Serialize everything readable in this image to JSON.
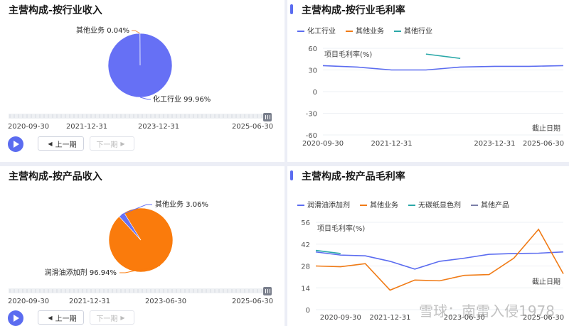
{
  "panels": {
    "industry_revenue": {
      "title": "主营构成-按行业收入",
      "prev": "上一期",
      "next": "下一期"
    },
    "industry_margin": {
      "title": "主营构成-按行业毛利率"
    },
    "product_revenue": {
      "title": "主营构成-按产品收入",
      "prev": "上一期",
      "next": "下一期"
    },
    "product_margin": {
      "title": "主营构成-按产品毛利率"
    }
  },
  "watermark": "雪球：南雷入侵1978",
  "chart_data": [
    {
      "type": "pie",
      "title": "主营构成-按行业收入",
      "slices": [
        {
          "label": "化工行业",
          "value": 99.96,
          "display": "化工行业 99.96%",
          "color": "#6670f5"
        },
        {
          "label": "其他业务",
          "value": 0.04,
          "display": "其他业务 0.04%",
          "color": "#f08a3c"
        }
      ],
      "timeline": [
        "2020-09-30",
        "2021-12-31",
        "2023-12-31",
        "2025-06-30"
      ]
    },
    {
      "type": "line",
      "title": "主营构成-按行业毛利率",
      "ylabel": "项目毛利率(%)",
      "xlabel": "截止日期",
      "x_ticks": [
        "2020-09-30",
        "2021-12-31",
        "2023-12-31",
        "2025-06-30"
      ],
      "x": [
        "2020-09-30",
        "2021-06-30",
        "2021-12-31",
        "2022-06-30",
        "2022-12-31",
        "2023-12-31",
        "2024-06-30",
        "2025-06-30"
      ],
      "ylim": [
        -60,
        60
      ],
      "yticks": [
        "60",
        "30",
        "0",
        "-30",
        "-60"
      ],
      "series": [
        {
          "name": "化工行业",
          "color": "#5b6cf0",
          "values": [
            36,
            34,
            30,
            30,
            34,
            35,
            35,
            36
          ]
        },
        {
          "name": "其他业务",
          "color": "#f07b16",
          "values": [
            null,
            null,
            null,
            null,
            null,
            null,
            null,
            null
          ]
        },
        {
          "name": "其他行业",
          "color": "#2aa8a8",
          "values": [
            null,
            null,
            null,
            52,
            46,
            null,
            null,
            null
          ]
        }
      ]
    },
    {
      "type": "pie",
      "title": "主营构成-按产品收入",
      "slices": [
        {
          "label": "润滑油添加剂",
          "value": 96.94,
          "display": "润滑油添加剂 96.94%",
          "color": "#fa7b0c"
        },
        {
          "label": "其他业务",
          "value": 3.06,
          "display": "其他业务 3.06%",
          "color": "#6670f5"
        }
      ],
      "timeline": [
        "2020-09-30",
        "2021-12-31",
        "2023-06-30",
        "2025-06-30"
      ]
    },
    {
      "type": "line",
      "title": "主营构成-按产品毛利率",
      "ylabel": "项目毛利率(%)",
      "xlabel": "截止日期",
      "x_ticks": [
        "2020-09-30",
        "2021-12-31",
        "2023-06-30",
        "2025-06-30"
      ],
      "x": [
        "2020-03-31",
        "2020-09-30",
        "2021-06-30",
        "2021-12-31",
        "2022-06-30",
        "2022-12-31",
        "2023-06-30",
        "2023-12-31",
        "2024-06-30",
        "2024-12-31",
        "2025-06-30"
      ],
      "ylim": [
        0,
        56
      ],
      "yticks": [
        "56",
        "42",
        "28",
        "14",
        "0"
      ],
      "series": [
        {
          "name": "润滑油添加剂",
          "color": "#5b6cf0",
          "values": [
            37,
            35,
            34.5,
            31,
            26,
            31,
            33,
            35.5,
            36,
            36.2,
            37
          ]
        },
        {
          "name": "其他业务",
          "color": "#f07b16",
          "values": [
            28,
            27.5,
            29.5,
            12.5,
            19,
            18.5,
            22,
            22.5,
            33,
            51.5,
            23
          ]
        },
        {
          "name": "无碳纸显色剂",
          "color": "#2aa8a8",
          "values": [
            38,
            36,
            null,
            null,
            null,
            null,
            null,
            null,
            null,
            null,
            null
          ]
        },
        {
          "name": "其他产品",
          "color": "#7b7fa8",
          "values": [
            null,
            null,
            null,
            null,
            null,
            null,
            null,
            null,
            null,
            null,
            null
          ]
        }
      ]
    }
  ]
}
